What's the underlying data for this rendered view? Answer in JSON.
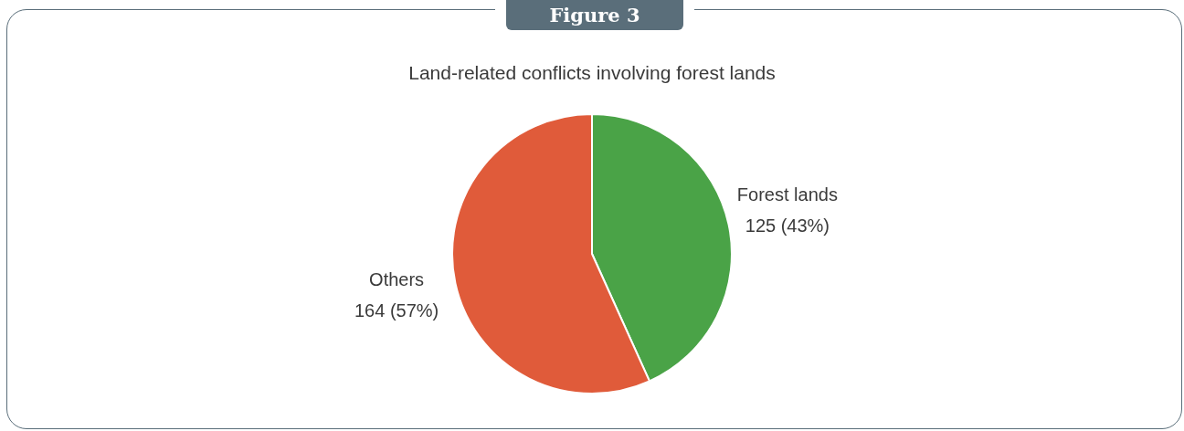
{
  "chart_data": {
    "type": "pie",
    "title": "Land-related conflicts involving forest lands",
    "annotations": [
      "Figure 3"
    ],
    "categories": [
      "Forest lands",
      "Others"
    ],
    "values": [
      125,
      164
    ],
    "value_labels": [
      "125 (43%)",
      "164 (57%)"
    ],
    "colors": [
      "#4aa347",
      "#e05b3a"
    ],
    "legend": false
  }
}
